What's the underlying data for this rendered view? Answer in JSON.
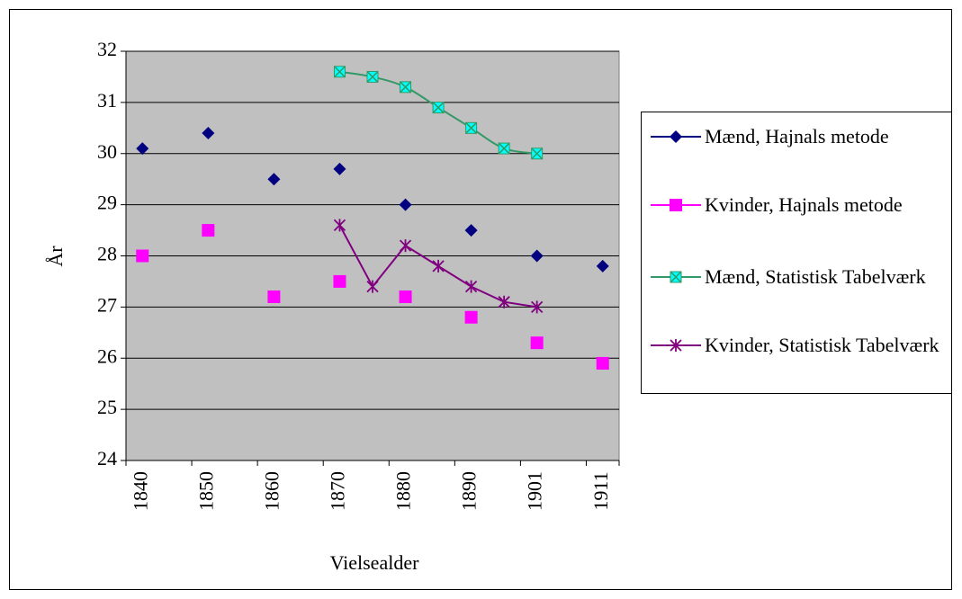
{
  "chart_data": {
    "type": "line",
    "x_label": "Vielsealder",
    "y_label": "År",
    "categories": [
      "1840",
      null,
      "1850",
      null,
      "1860",
      null,
      "1870",
      null,
      "1880",
      null,
      "1890",
      null,
      "1901",
      null,
      "1911"
    ],
    "ylim": [
      24,
      32
    ],
    "yticks": [
      24,
      25,
      26,
      27,
      28,
      29,
      30,
      31,
      32
    ],
    "grid": true,
    "series": [
      {
        "name": "Mænd, Hajnals metode",
        "color": "#000080",
        "marker": "diamond",
        "values": [
          30.1,
          null,
          30.4,
          null,
          29.5,
          null,
          29.7,
          null,
          29.0,
          null,
          28.5,
          null,
          28.0,
          null,
          27.8
        ]
      },
      {
        "name": "Kvinder, Hajnals metode",
        "color": "#ff00ff",
        "marker": "square",
        "values": [
          28.0,
          null,
          28.5,
          null,
          27.2,
          null,
          27.5,
          null,
          27.2,
          null,
          26.8,
          null,
          26.3,
          null,
          25.9
        ]
      },
      {
        "name": "Mænd, Statistisk Tabelværk",
        "color": "#339966",
        "marker": "xsquare",
        "smooth": true,
        "values": [
          null,
          null,
          null,
          null,
          null,
          null,
          31.6,
          31.5,
          31.3,
          30.9,
          30.5,
          30.1,
          30.0,
          null,
          null
        ]
      },
      {
        "name": "Kvinder, Statistisk Tabelværk",
        "color": "#800080",
        "marker": "star",
        "values": [
          null,
          null,
          null,
          null,
          null,
          null,
          28.6,
          27.4,
          28.2,
          27.8,
          27.4,
          27.1,
          27.0,
          null,
          null
        ]
      }
    ]
  }
}
